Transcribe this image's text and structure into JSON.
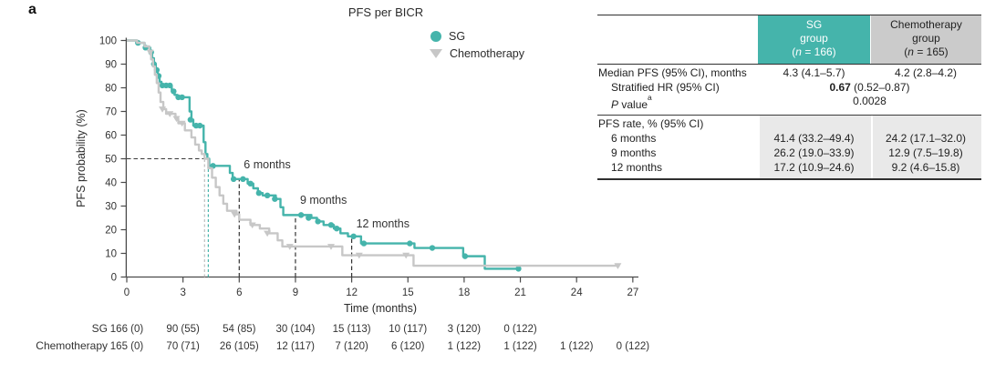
{
  "panel_label": "a",
  "plot": {
    "title": "PFS per BICR",
    "xlabel": "Time (months)",
    "ylabel": "PFS probability (%)",
    "legend": [
      {
        "label": "SG",
        "marker": "circle",
        "color": "#45b4ab"
      },
      {
        "label": "Chemotherapy",
        "marker": "triangle-down",
        "color": "#c7c7c7"
      }
    ]
  },
  "colors": {
    "sg_teal": "#45b4ab",
    "chemo_gray_curve": "#c7c7c7",
    "chemo_header_bg": "#cbcbcb",
    "rate_section_shading": "#e9e9e9"
  },
  "chart_data": {
    "type": "line",
    "subtype": "kaplan-meier-step",
    "title": "PFS per BICR",
    "xlabel": "Time (months)",
    "ylabel": "PFS probability (%)",
    "xlim": [
      0,
      27
    ],
    "ylim": [
      0,
      100
    ],
    "xticks": [
      0,
      3,
      6,
      9,
      12,
      15,
      18,
      21,
      24,
      27
    ],
    "yticks": [
      0,
      10,
      20,
      30,
      40,
      50,
      60,
      70,
      80,
      90,
      100
    ],
    "series": [
      {
        "name": "SG",
        "color": "#45b4ab",
        "marker": "circle",
        "steps": [
          [
            0,
            100
          ],
          [
            0.55,
            99
          ],
          [
            0.95,
            97
          ],
          [
            1.25,
            95
          ],
          [
            1.35,
            92.5
          ],
          [
            1.45,
            90
          ],
          [
            1.55,
            87.5
          ],
          [
            1.65,
            85
          ],
          [
            1.75,
            82.5
          ],
          [
            1.85,
            81
          ],
          [
            2.4,
            78.5
          ],
          [
            2.55,
            77
          ],
          [
            2.7,
            76
          ],
          [
            3.35,
            70
          ],
          [
            3.45,
            66.5
          ],
          [
            3.55,
            64
          ],
          [
            4.1,
            57
          ],
          [
            4.2,
            52
          ],
          [
            4.3,
            50
          ],
          [
            4.4,
            47
          ],
          [
            5.5,
            44
          ],
          [
            5.65,
            41.4
          ],
          [
            6.45,
            39.5
          ],
          [
            6.75,
            37.5
          ],
          [
            7.0,
            35.5
          ],
          [
            7.25,
            34.5
          ],
          [
            7.95,
            33
          ],
          [
            8.2,
            29.5
          ],
          [
            8.35,
            26.2
          ],
          [
            9.85,
            25
          ],
          [
            10.15,
            23.5
          ],
          [
            10.5,
            22
          ],
          [
            11.05,
            20.5
          ],
          [
            11.4,
            18.5
          ],
          [
            11.8,
            17.2
          ],
          [
            12.5,
            14.2
          ],
          [
            15.35,
            12.3
          ],
          [
            17.95,
            8.8
          ],
          [
            19.1,
            3.5
          ]
        ],
        "end": 20.9,
        "censors": [
          [
            0.6,
            99
          ],
          [
            1.0,
            97
          ],
          [
            1.3,
            95
          ],
          [
            1.45,
            90
          ],
          [
            1.6,
            87.5
          ],
          [
            1.7,
            85
          ],
          [
            1.9,
            81
          ],
          [
            2.1,
            81
          ],
          [
            2.3,
            81
          ],
          [
            2.5,
            78.5
          ],
          [
            2.75,
            76
          ],
          [
            2.95,
            76
          ],
          [
            3.4,
            66.5
          ],
          [
            3.7,
            64
          ],
          [
            3.9,
            64
          ],
          [
            4.6,
            47
          ],
          [
            5.7,
            41.4
          ],
          [
            6.2,
            41.4
          ],
          [
            6.6,
            39.5
          ],
          [
            7.05,
            35.5
          ],
          [
            7.5,
            34.5
          ],
          [
            7.9,
            33
          ],
          [
            9.3,
            26.2
          ],
          [
            9.7,
            25
          ],
          [
            10.2,
            23.5
          ],
          [
            10.9,
            22
          ],
          [
            11.2,
            20.5
          ],
          [
            12.1,
            17.2
          ],
          [
            12.65,
            14.2
          ],
          [
            15.1,
            14.2
          ],
          [
            16.3,
            12.3
          ],
          [
            18.05,
            8.8
          ],
          [
            20.9,
            3.5
          ]
        ]
      },
      {
        "name": "Chemotherapy",
        "color": "#c7c7c7",
        "marker": "triangle-down",
        "steps": [
          [
            0,
            100
          ],
          [
            0.55,
            99
          ],
          [
            0.95,
            97.5
          ],
          [
            1.2,
            95
          ],
          [
            1.3,
            92
          ],
          [
            1.4,
            89
          ],
          [
            1.5,
            85.5
          ],
          [
            1.6,
            82
          ],
          [
            1.7,
            78
          ],
          [
            1.8,
            74
          ],
          [
            1.95,
            71
          ],
          [
            2.1,
            69
          ],
          [
            2.6,
            67
          ],
          [
            2.75,
            65
          ],
          [
            3.1,
            62
          ],
          [
            3.45,
            59
          ],
          [
            3.65,
            56
          ],
          [
            3.85,
            53.5
          ],
          [
            4.0,
            52
          ],
          [
            4.15,
            50
          ],
          [
            4.35,
            46
          ],
          [
            4.55,
            42
          ],
          [
            4.75,
            38
          ],
          [
            4.95,
            34.5
          ],
          [
            5.15,
            31
          ],
          [
            5.35,
            28
          ],
          [
            5.85,
            26.5
          ],
          [
            6.0,
            24.2
          ],
          [
            6.6,
            22
          ],
          [
            7.1,
            20.5
          ],
          [
            7.6,
            18.5
          ],
          [
            8.05,
            15.5
          ],
          [
            8.3,
            12.9
          ],
          [
            11.5,
            9.2
          ],
          [
            15.3,
            4.8
          ]
        ],
        "end": 26.3,
        "censors": [
          [
            1.25,
            95
          ],
          [
            1.9,
            71
          ],
          [
            2.3,
            69
          ],
          [
            2.65,
            67
          ],
          [
            2.95,
            65
          ],
          [
            5.75,
            26.5
          ],
          [
            6.7,
            22
          ],
          [
            7.5,
            18.5
          ],
          [
            8.7,
            12.9
          ],
          [
            10.9,
            12.9
          ],
          [
            12.4,
            9.2
          ],
          [
            14.9,
            9.2
          ],
          [
            26.2,
            4.8
          ]
        ]
      }
    ],
    "annotations": {
      "median_rule": {
        "y": 50,
        "x_end": 4.35
      },
      "median_drop_lines": [
        {
          "x": 4.35,
          "color": "#45b4ab"
        },
        {
          "x": 4.15,
          "color": "#bdbdbd"
        }
      ],
      "timepoints": [
        {
          "x": 6,
          "label": "6 months",
          "curve_y": 41.4,
          "label_y": 46
        },
        {
          "x": 9,
          "label": "9 months",
          "curve_y": 26.2,
          "label_y": 31
        },
        {
          "x": 12,
          "label": "12 months",
          "curve_y": 17.2,
          "label_y": 21
        }
      ]
    },
    "at_risk": {
      "rows": [
        {
          "label": "SG",
          "values": [
            "166 (0)",
            "90 (55)",
            "54 (85)",
            "30 (104)",
            "15 (113)",
            "10 (117)",
            "3 (120)",
            "0 (122)"
          ]
        },
        {
          "label": "Chemotherapy",
          "values": [
            "165 (0)",
            "70 (71)",
            "26 (105)",
            "12 (117)",
            "7 (120)",
            "6 (120)",
            "1 (122)",
            "1 (122)",
            "1 (122)",
            "0 (122)"
          ]
        }
      ]
    }
  },
  "stats_table": {
    "header": {
      "sg": {
        "line1": "SG",
        "line2": "group",
        "n_prefix": "(",
        "n_italic": "n",
        "n_suffix": " = 166)"
      },
      "chemo": {
        "line1": "Chemotherapy",
        "line2": "group",
        "n_prefix": "(",
        "n_italic": "n",
        "n_suffix": " = 165)"
      }
    },
    "rows": {
      "median_label": "Median PFS (95% CI), months",
      "median_sg": "4.3 (4.1–5.7)",
      "median_chemo": "4.2 (2.8–4.2)",
      "hr_label": "Stratified HR (95% CI)",
      "hr_bold": "0.67",
      "hr_rest": " (0.52–0.87)",
      "p_italic": "P",
      "p_rest": " value",
      "p_sup": "a",
      "p_value": "0.0028",
      "rate_label": "PFS rate, % (95% CI)",
      "rate_rows": [
        {
          "label": "6 months",
          "sg": "41.4 (33.2–49.4)",
          "chemo": "24.2 (17.1–32.0)"
        },
        {
          "label": "9 months",
          "sg": "26.2 (19.0–33.9)",
          "chemo": "12.9 (7.5–19.8)"
        },
        {
          "label": "12 months",
          "sg": "17.2 (10.9–24.6)",
          "chemo": "9.2 (4.6–15.8)"
        }
      ]
    }
  }
}
